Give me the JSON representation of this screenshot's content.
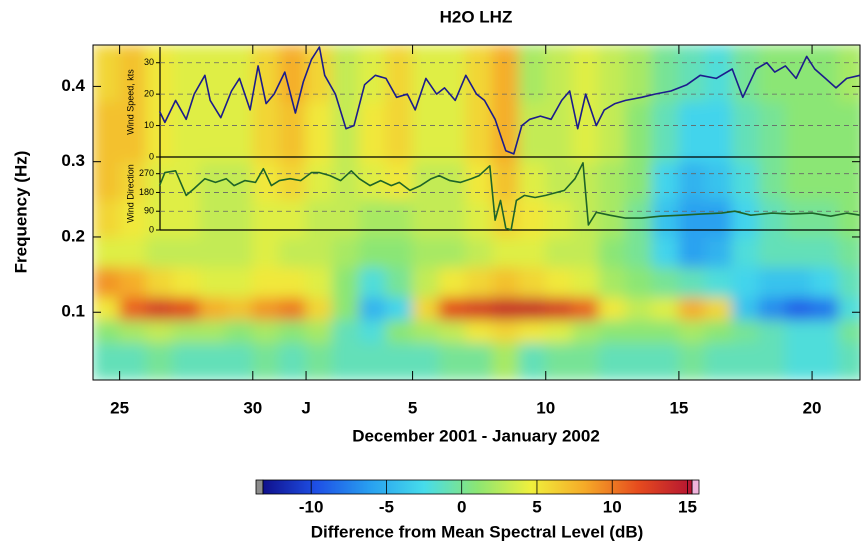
{
  "chart_data": [
    {
      "type": "heatmap",
      "title": "H2O  LHZ",
      "x_label": "December 2001  -  January 2002",
      "y_label": "Frequency  (Hz)",
      "x_bins": [
        24,
        25,
        26,
        27,
        28,
        29,
        30,
        31,
        32,
        33,
        34,
        35,
        36,
        37,
        38,
        39,
        40,
        41,
        42,
        43,
        44,
        45,
        46,
        47,
        48,
        49,
        50,
        51,
        52,
        53
      ],
      "y_bins": [
        0.01,
        0.06,
        0.09,
        0.12,
        0.16,
        0.2,
        0.25,
        0.3,
        0.38,
        0.455
      ],
      "values": [
        [
          -1,
          -1,
          0,
          -1,
          -1,
          -1,
          0,
          -1,
          0,
          -1,
          -1,
          -1,
          -1,
          0,
          0,
          2,
          -1,
          0,
          0,
          -1,
          -1,
          -1,
          0,
          -1,
          -1,
          -1,
          -2,
          -2,
          -1
        ],
        [
          1,
          2,
          3,
          2,
          2,
          1,
          2,
          1,
          2,
          -1,
          -2,
          1,
          2,
          3,
          5,
          6,
          5,
          4,
          2,
          1,
          1,
          1,
          2,
          1,
          0,
          -1,
          -2,
          -2,
          0
        ],
        [
          5,
          11,
          13,
          12,
          8,
          7,
          9,
          10,
          6,
          1,
          -5,
          -3,
          6,
          12,
          13,
          14,
          14,
          13,
          11,
          5,
          3,
          4,
          8,
          6,
          -4,
          -7,
          -9,
          -8,
          -2
        ],
        [
          9,
          8,
          6,
          5,
          4,
          4,
          5,
          5,
          4,
          1,
          -2,
          0,
          3,
          5,
          6,
          7,
          6,
          5,
          4,
          2,
          1,
          0,
          -1,
          -2,
          -3,
          -4,
          -4,
          -3,
          -1
        ],
        [
          4,
          4,
          3,
          3,
          3,
          3,
          4,
          3,
          3,
          2,
          1,
          1,
          2,
          2,
          3,
          4,
          4,
          3,
          3,
          1,
          0,
          -3,
          -6,
          -5,
          -2,
          -1,
          -1,
          -1,
          0
        ],
        [
          6,
          5,
          4,
          4,
          3,
          3,
          4,
          4,
          3,
          3,
          2,
          2,
          3,
          3,
          4,
          6,
          5,
          4,
          3,
          2,
          0,
          -4,
          -6,
          -6,
          -3,
          -1,
          0,
          0,
          1
        ],
        [
          7,
          6,
          4,
          4,
          3,
          3,
          5,
          6,
          4,
          3,
          4,
          5,
          3,
          3,
          5,
          7,
          4,
          3,
          3,
          2,
          1,
          -3,
          -5,
          -4,
          -2,
          0,
          1,
          1,
          1
        ],
        [
          7,
          7,
          5,
          4,
          4,
          4,
          6,
          7,
          5,
          3,
          5,
          6,
          4,
          4,
          6,
          8,
          3,
          3,
          4,
          3,
          1,
          -1,
          -3,
          -3,
          -1,
          0,
          1,
          1,
          1
        ],
        [
          6,
          7,
          5,
          4,
          4,
          4,
          6,
          8,
          6,
          3,
          4,
          6,
          4,
          4,
          6,
          8,
          2,
          3,
          4,
          3,
          2,
          0,
          -1,
          -2,
          0,
          1,
          1,
          1,
          2
        ]
      ],
      "xlim": [
        24,
        52.8
      ],
      "ylim": [
        0.01,
        0.455
      ],
      "xticks": [
        25,
        30,
        {
          "value": 32,
          "label": "J"
        },
        {
          "value": 36,
          "label": "5"
        },
        {
          "value": 41,
          "label": "10"
        },
        {
          "value": 46,
          "label": "15"
        },
        {
          "value": 51,
          "label": "20"
        }
      ],
      "yticks": [
        0.1,
        0.2,
        0.3,
        0.4
      ],
      "colorbar": {
        "label": "Difference from Mean Spectral Level  (dB)",
        "lim": [
          -13.2,
          15.3
        ],
        "ticks": [
          -10,
          -5,
          0,
          5,
          10,
          15
        ],
        "colormap": [
          "#10108c",
          "#1e50e6",
          "#28a0f0",
          "#46dceb",
          "#8ce673",
          "#f0f03c",
          "#f5aa28",
          "#e64b1e",
          "#b41432"
        ]
      }
    },
    {
      "type": "line",
      "y_label": "Wind Speed, kts",
      "xlim": [
        24,
        52.8
      ],
      "ylim": [
        0,
        35
      ],
      "yticks": [
        0,
        10,
        20,
        30
      ],
      "grid": true,
      "x": [
        26.5,
        26.7,
        27.1,
        27.5,
        27.8,
        28.2,
        28.4,
        28.8,
        29.2,
        29.5,
        29.9,
        30.2,
        30.5,
        30.8,
        31.2,
        31.6,
        31.9,
        32.2,
        32.5,
        32.7,
        33.1,
        33.5,
        33.8,
        34.2,
        34.6,
        35.0,
        35.4,
        35.8,
        36.1,
        36.5,
        36.9,
        37.2,
        37.6,
        38.0,
        38.4,
        38.7,
        39.1,
        39.5,
        39.8,
        40.1,
        40.4,
        40.8,
        41.2,
        41.6,
        41.9,
        42.2,
        42.5,
        42.9,
        43.2,
        43.6,
        44.0,
        44.6,
        45.1,
        45.7,
        46.3,
        46.8,
        47.4,
        48.0,
        48.4,
        48.9,
        49.3,
        49.6,
        50.0,
        50.4,
        50.8,
        51.1,
        51.5,
        51.9,
        52.3,
        52.8
      ],
      "series": [
        {
          "color": "#1c1c8c",
          "values": [
            14.5,
            11,
            18,
            12,
            20,
            26,
            18,
            12.5,
            21,
            25,
            15,
            29,
            17,
            20,
            27,
            14,
            24,
            31,
            35,
            26,
            20,
            9,
            10,
            23,
            26,
            25,
            19,
            20,
            15,
            25,
            20,
            22,
            18,
            26,
            20,
            18,
            12,
            2,
            1,
            10,
            12,
            13,
            12,
            18,
            21,
            9,
            20,
            10,
            15,
            17,
            18,
            19,
            20,
            21,
            23,
            26,
            25,
            28,
            19,
            28,
            30,
            27,
            29,
            25,
            32,
            28,
            25,
            22,
            25,
            26
          ]
        }
      ]
    },
    {
      "type": "line",
      "y_label": "Wind Direction",
      "xlim": [
        24,
        52.8
      ],
      "ylim": [
        0,
        350
      ],
      "yticks": [
        0,
        90,
        180,
        270
      ],
      "grid": true,
      "x": [
        26.5,
        26.7,
        27.1,
        27.5,
        27.8,
        28.2,
        28.6,
        29.0,
        29.3,
        29.7,
        30.1,
        30.4,
        30.7,
        31.0,
        31.4,
        31.8,
        32.2,
        32.5,
        32.9,
        33.3,
        33.7,
        34.0,
        34.4,
        34.8,
        35.2,
        35.5,
        35.9,
        36.3,
        36.7,
        37.0,
        37.4,
        37.8,
        38.2,
        38.5,
        38.9,
        39.1,
        39.3,
        39.5,
        39.7,
        39.9,
        40.2,
        40.6,
        41.0,
        41.4,
        41.7,
        42.1,
        42.4,
        42.6,
        42.9,
        43.4,
        44.0,
        44.6,
        45.3,
        46.1,
        46.8,
        47.6,
        48.1,
        48.7,
        49.5,
        50.2,
        51.0,
        51.7,
        52.3,
        52.8
      ],
      "series": [
        {
          "color": "#1e6428",
          "values": [
            213,
            275,
            284,
            166,
            199,
            246,
            228,
            246,
            213,
            237,
            228,
            294,
            213,
            237,
            246,
            237,
            275,
            275,
            261,
            237,
            284,
            246,
            213,
            237,
            213,
            228,
            190,
            213,
            246,
            261,
            237,
            228,
            246,
            261,
            308,
            47,
            142,
            9,
            0,
            142,
            166,
            156,
            166,
            180,
            190,
            246,
            322,
            24,
            85,
            71,
            57,
            57,
            66,
            71,
            76,
            81,
            90,
            71,
            81,
            76,
            81,
            66,
            81,
            71
          ]
        }
      ]
    }
  ]
}
